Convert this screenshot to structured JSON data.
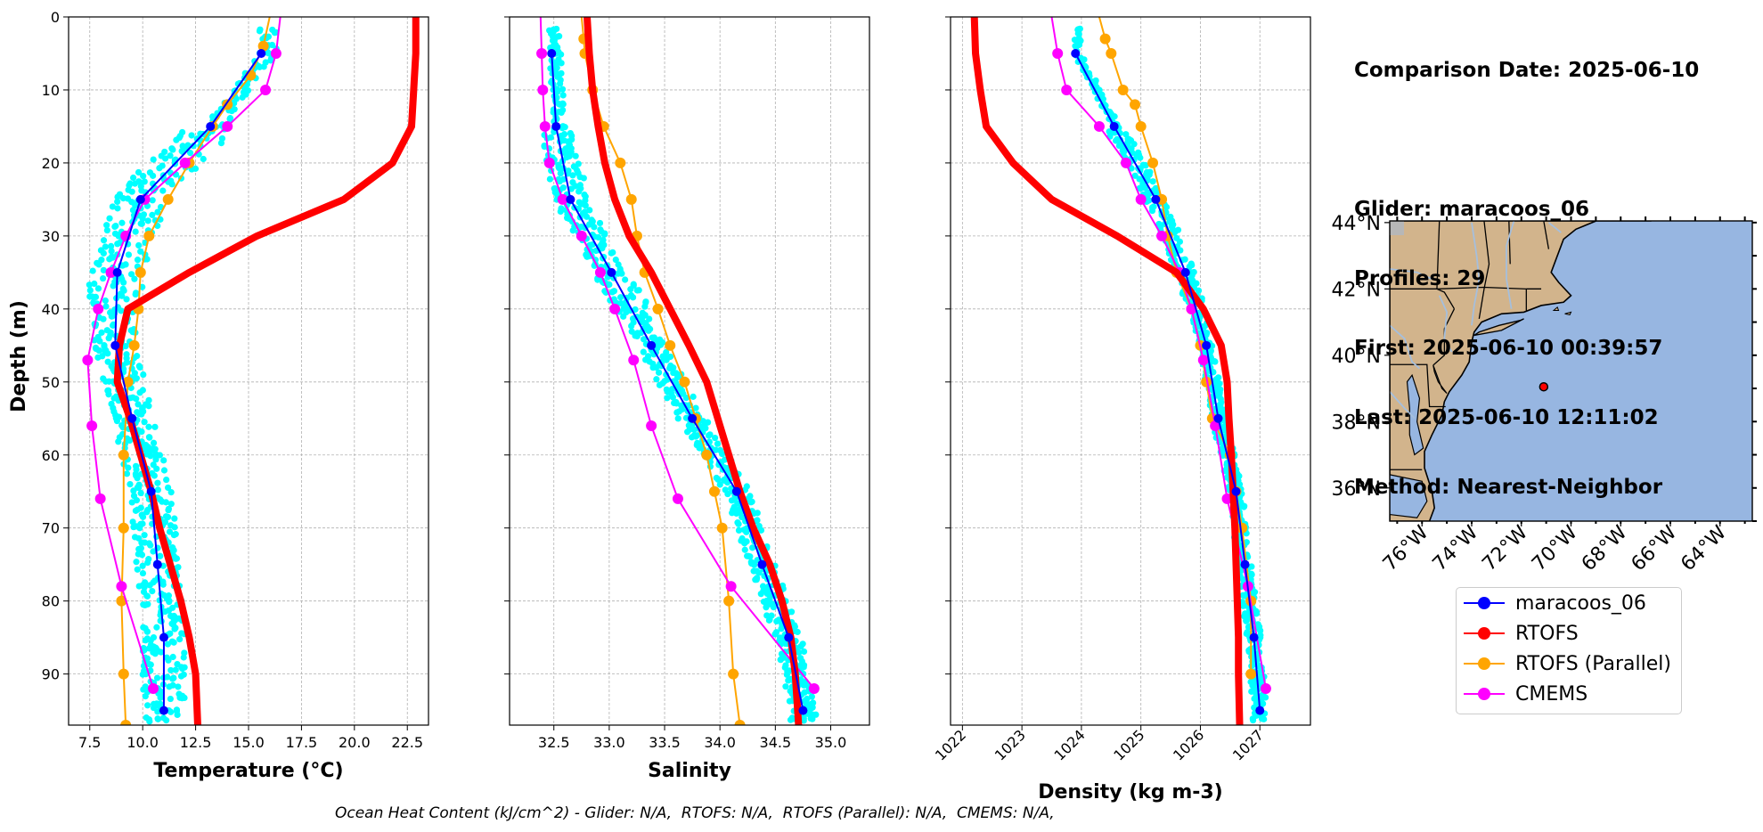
{
  "info": {
    "date_line": "Comparison Date: 2025-06-10",
    "glider_line": "Glider: maracoos_06",
    "profiles_line": "Profiles: 29",
    "first_line": "First: 2025-06-10 00:39:57",
    "last_line": "Last: 2025-06-10 12:11:02",
    "method_line": "Method: Nearest-Neighbor"
  },
  "footer": "Ocean Heat Content (kJ/cm^2) - Glider: N/A,  RTOFS: N/A,  RTOFS (Parallel): N/A,  CMEMS: N/A,",
  "colors": {
    "glider": "#0000ff",
    "rtofs": "#ff0000",
    "rtofs_parallel": "#ffa500",
    "cmems": "#ff00ff",
    "glider_scatter": "#00ffff",
    "land": "#d2b48c",
    "ocean": "#97b6e1"
  },
  "legend": [
    {
      "label": "maracoos_06",
      "color": "#0000ff"
    },
    {
      "label": "RTOFS",
      "color": "#ff0000"
    },
    {
      "label": "RTOFS (Parallel)",
      "color": "#ffa500"
    },
    {
      "label": "CMEMS",
      "color": "#ff00ff"
    }
  ],
  "chart_data": [
    {
      "type": "line",
      "xlabel": "Temperature (°C)",
      "ylabel": "Depth (m)",
      "xlim": [
        6.5,
        23.5
      ],
      "ylim": [
        97,
        0
      ],
      "xticks": [
        7.5,
        10.0,
        12.5,
        15.0,
        17.5,
        20.0,
        22.5
      ],
      "xtick_labels": [
        "7.5",
        "10.0",
        "12.5",
        "15.0",
        "17.5",
        "20.0",
        "22.5"
      ],
      "yticks": [
        0,
        10,
        20,
        30,
        40,
        50,
        60,
        70,
        80,
        90
      ],
      "ytick_labels": [
        "0",
        "10",
        "20",
        "30",
        "40",
        "50",
        "60",
        "70",
        "80",
        "90"
      ],
      "grid": true,
      "scatter": {
        "name": "maracoos_06 profiles",
        "spread": 1.0
      },
      "series": [
        {
          "name": "maracoos_06",
          "depth": [
            5,
            15,
            25,
            35,
            45,
            55,
            65,
            75,
            85,
            95
          ],
          "values": [
            15.6,
            13.2,
            9.9,
            8.8,
            8.7,
            9.5,
            10.4,
            10.7,
            11.0,
            11.0
          ]
        },
        {
          "name": "RTOFS",
          "depth": [
            0,
            5,
            10,
            15,
            20,
            25,
            30,
            35,
            40,
            45,
            50,
            55,
            60,
            65,
            70,
            75,
            80,
            85,
            90,
            97
          ],
          "values": [
            22.9,
            22.9,
            22.8,
            22.7,
            21.8,
            19.5,
            15.4,
            12.2,
            9.3,
            8.9,
            8.8,
            9.4,
            9.9,
            10.4,
            10.8,
            11.3,
            11.8,
            12.2,
            12.5,
            12.6
          ]
        },
        {
          "name": "RTOFS (Parallel)",
          "depth": [
            0,
            4,
            8,
            12,
            15,
            20,
            25,
            30,
            35,
            40,
            45,
            50,
            60,
            70,
            80,
            90,
            97
          ],
          "values": [
            16.0,
            15.7,
            15.1,
            14.0,
            13.3,
            12.2,
            11.2,
            10.3,
            9.9,
            9.8,
            9.6,
            9.3,
            9.1,
            9.1,
            9.0,
            9.1,
            9.2
          ]
        },
        {
          "name": "CMEMS",
          "depth": [
            0,
            5,
            10,
            15,
            20,
            25,
            30,
            35,
            40,
            47,
            56,
            66,
            78,
            92
          ],
          "values": [
            16.5,
            16.3,
            15.8,
            14.0,
            12.0,
            10.1,
            9.2,
            8.5,
            7.9,
            7.4,
            7.6,
            8.0,
            9.0,
            10.5
          ]
        }
      ]
    },
    {
      "type": "line",
      "xlabel": "Salinity",
      "ylabel": "",
      "xlim": [
        32.1,
        35.35
      ],
      "ylim": [
        97,
        0
      ],
      "xticks": [
        32.5,
        33.0,
        33.5,
        34.0,
        34.5,
        35.0
      ],
      "xtick_labels": [
        "32.5",
        "33.0",
        "33.5",
        "34.0",
        "34.5",
        "35.0"
      ],
      "grid": true,
      "scatter": {
        "name": "maracoos_06 profiles",
        "spread": 0.12
      },
      "series": [
        {
          "name": "maracoos_06",
          "depth": [
            5,
            15,
            25,
            35,
            45,
            55,
            65,
            75,
            85,
            95
          ],
          "values": [
            32.48,
            32.52,
            32.65,
            33.02,
            33.38,
            33.75,
            34.15,
            34.38,
            34.62,
            34.75
          ]
        },
        {
          "name": "RTOFS",
          "depth": [
            0,
            5,
            10,
            15,
            20,
            25,
            30,
            35,
            40,
            45,
            50,
            55,
            60,
            65,
            70,
            75,
            80,
            85,
            90,
            97
          ],
          "values": [
            32.8,
            32.82,
            32.85,
            32.9,
            32.96,
            33.05,
            33.18,
            33.38,
            33.55,
            33.72,
            33.88,
            33.98,
            34.08,
            34.18,
            34.3,
            34.45,
            34.56,
            34.64,
            34.68,
            34.71
          ]
        },
        {
          "name": "RTOFS (Parallel)",
          "depth": [
            0,
            3,
            5,
            10,
            15,
            20,
            25,
            30,
            35,
            40,
            45,
            50,
            55,
            60,
            65,
            70,
            80,
            90,
            97
          ],
          "values": [
            32.75,
            32.77,
            32.78,
            32.85,
            32.95,
            33.1,
            33.2,
            33.25,
            33.32,
            33.44,
            33.55,
            33.68,
            33.78,
            33.88,
            33.95,
            34.02,
            34.08,
            34.12,
            34.18
          ]
        },
        {
          "name": "CMEMS",
          "depth": [
            0,
            5,
            10,
            15,
            20,
            25,
            30,
            35,
            40,
            47,
            56,
            66,
            78,
            92
          ],
          "values": [
            32.38,
            32.39,
            32.4,
            32.42,
            32.46,
            32.58,
            32.75,
            32.92,
            33.05,
            33.22,
            33.38,
            33.62,
            34.1,
            34.85
          ]
        }
      ]
    },
    {
      "type": "line",
      "xlabel": "Density (kg m-3)",
      "ylabel": "",
      "xlim": [
        1021.8,
        1027.85
      ],
      "ylim": [
        97,
        0
      ],
      "xticks": [
        1022,
        1023,
        1024,
        1025,
        1026,
        1027
      ],
      "xtick_labels": [
        "1022",
        "1023",
        "1024",
        "1025",
        "1026",
        "1027"
      ],
      "grid": true,
      "scatter": {
        "name": "maracoos_06 profiles",
        "spread": 0.12
      },
      "series": [
        {
          "name": "maracoos_06",
          "depth": [
            5,
            15,
            25,
            35,
            45,
            55,
            65,
            75,
            85,
            95
          ],
          "values": [
            1023.9,
            1024.55,
            1025.25,
            1025.75,
            1026.1,
            1026.3,
            1026.6,
            1026.75,
            1026.9,
            1027.0
          ]
        },
        {
          "name": "RTOFS",
          "depth": [
            0,
            5,
            10,
            15,
            20,
            25,
            30,
            35,
            40,
            45,
            50,
            55,
            60,
            65,
            70,
            75,
            80,
            85,
            90,
            97
          ],
          "values": [
            1022.2,
            1022.22,
            1022.3,
            1022.4,
            1022.85,
            1023.5,
            1024.6,
            1025.6,
            1026.05,
            1026.35,
            1026.45,
            1026.48,
            1026.52,
            1026.55,
            1026.58,
            1026.6,
            1026.62,
            1026.64,
            1026.64,
            1026.66
          ]
        },
        {
          "name": "RTOFS (Parallel)",
          "depth": [
            0,
            3,
            5,
            10,
            12,
            15,
            20,
            25,
            30,
            35,
            40,
            45,
            50,
            55,
            60,
            65,
            70,
            80,
            90
          ],
          "values": [
            1024.3,
            1024.4,
            1024.5,
            1024.7,
            1024.9,
            1025.0,
            1025.2,
            1025.35,
            1025.45,
            1025.6,
            1025.85,
            1026.0,
            1026.1,
            1026.2,
            1026.5,
            1026.6,
            1026.7,
            1026.85,
            1026.85
          ]
        },
        {
          "name": "CMEMS",
          "depth": [
            0,
            5,
            10,
            15,
            20,
            25,
            30,
            35,
            40,
            47,
            56,
            66,
            78,
            92
          ],
          "values": [
            1023.5,
            1023.6,
            1023.75,
            1024.3,
            1024.75,
            1025.0,
            1025.35,
            1025.65,
            1025.85,
            1026.05,
            1026.25,
            1026.45,
            1026.8,
            1027.1
          ]
        }
      ]
    }
  ],
  "map": {
    "lat_ticks": [
      "44°N",
      "42°N",
      "40°N",
      "38°N",
      "36°N"
    ],
    "lon_ticks": [
      "76°W",
      "74°W",
      "72°W",
      "70°W",
      "68°W",
      "66°W",
      "64°W"
    ],
    "glider_position": {
      "lon": -71.1,
      "lat": 39.05
    }
  }
}
